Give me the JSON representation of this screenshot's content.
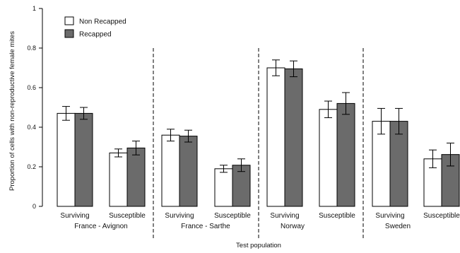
{
  "chart_data": {
    "type": "bar",
    "xlabel": "Test population",
    "ylabel": "Proportion of cells with non-reproductive female mites",
    "ylim": [
      0,
      1
    ],
    "yticks": [
      "0",
      "0.2",
      "0.4",
      "0.6",
      "0.8",
      "1"
    ],
    "legend_placement": "top-left",
    "colors": {
      "Non Recapped": "#ffffff",
      "Recapped": "#6b6b6b"
    },
    "groups": [
      "France - Avignon",
      "France - Sarthe",
      "Norway",
      "Sweden"
    ],
    "categories": [
      "Surviving",
      "Susceptible",
      "Surviving",
      "Susceptible",
      "Surviving",
      "Susceptible",
      "Surviving",
      "Susceptible"
    ],
    "series": [
      {
        "name": "Non Recapped",
        "values": [
          0.47,
          0.27,
          0.36,
          0.19,
          0.7,
          0.49,
          0.43,
          0.24
        ],
        "error": [
          0.035,
          0.02,
          0.03,
          0.018,
          0.04,
          0.042,
          0.065,
          0.045
        ]
      },
      {
        "name": "Recapped",
        "values": [
          0.47,
          0.295,
          0.355,
          0.208,
          0.695,
          0.52,
          0.43,
          0.262
        ],
        "error": [
          0.03,
          0.035,
          0.03,
          0.032,
          0.04,
          0.055,
          0.065,
          0.058
        ]
      }
    ]
  }
}
